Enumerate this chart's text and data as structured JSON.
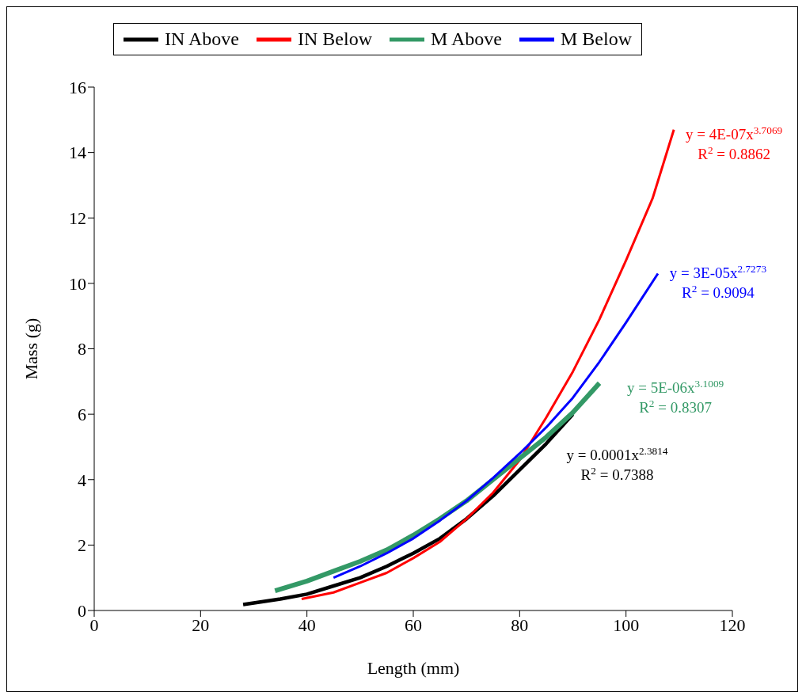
{
  "chart_data": {
    "type": "line",
    "xlabel": "Length (mm)",
    "ylabel": "Mass (g)",
    "xlim": [
      0,
      120
    ],
    "xticks": [
      0,
      20,
      40,
      60,
      80,
      100,
      120
    ],
    "ylim": [
      0,
      16
    ],
    "yticks": [
      0,
      2,
      4,
      6,
      8,
      10,
      12,
      14,
      16
    ],
    "grid": false,
    "legend": "top",
    "marker": "none",
    "line_style": "solid",
    "series": [
      {
        "name": "IN Above",
        "color": "#000000",
        "x": [
          28,
          35,
          40,
          45,
          50,
          55,
          60,
          65,
          70,
          75,
          80,
          85,
          90
        ],
        "values": [
          0.18,
          0.35,
          0.5,
          0.75,
          1.0,
          1.35,
          1.75,
          2.2,
          2.8,
          3.5,
          4.3,
          5.1,
          6.0
        ]
      },
      {
        "name": "IN Below",
        "color": "#ff0000",
        "x": [
          39,
          45,
          50,
          55,
          60,
          65,
          70,
          75,
          80,
          85,
          90,
          95,
          100,
          105,
          109
        ],
        "values": [
          0.35,
          0.55,
          0.85,
          1.15,
          1.6,
          2.1,
          2.8,
          3.6,
          4.6,
          5.9,
          7.3,
          8.9,
          10.7,
          12.6,
          14.7
        ]
      },
      {
        "name": "M Above",
        "color": "#339966",
        "x": [
          34,
          40,
          45,
          50,
          55,
          60,
          65,
          70,
          75,
          80,
          85,
          90,
          95
        ],
        "values": [
          0.6,
          0.9,
          1.2,
          1.5,
          1.85,
          2.3,
          2.8,
          3.35,
          4.0,
          4.65,
          5.3,
          6.05,
          6.95
        ]
      },
      {
        "name": "M Below",
        "color": "#0000ff",
        "x": [
          45,
          50,
          55,
          60,
          65,
          70,
          75,
          80,
          85,
          90,
          95,
          100,
          106
        ],
        "values": [
          1.0,
          1.35,
          1.75,
          2.2,
          2.75,
          3.35,
          4.05,
          4.8,
          5.6,
          6.5,
          7.6,
          8.8,
          10.3
        ]
      }
    ],
    "annotations": [
      "y = 0.0001x$^{2.3814}$",
      "R$^{2}$ = 0.7388",
      "y = 4E-07x$^{3.7069}$",
      "R$^{2}$ = 0.8862",
      "y = 5E-06x$^{3.1009}$",
      "R$^{2}$ = 0.8307",
      "y = 3E-05x$^{2.7273}$",
      "R$^{2}$ = 0.9094"
    ]
  }
}
